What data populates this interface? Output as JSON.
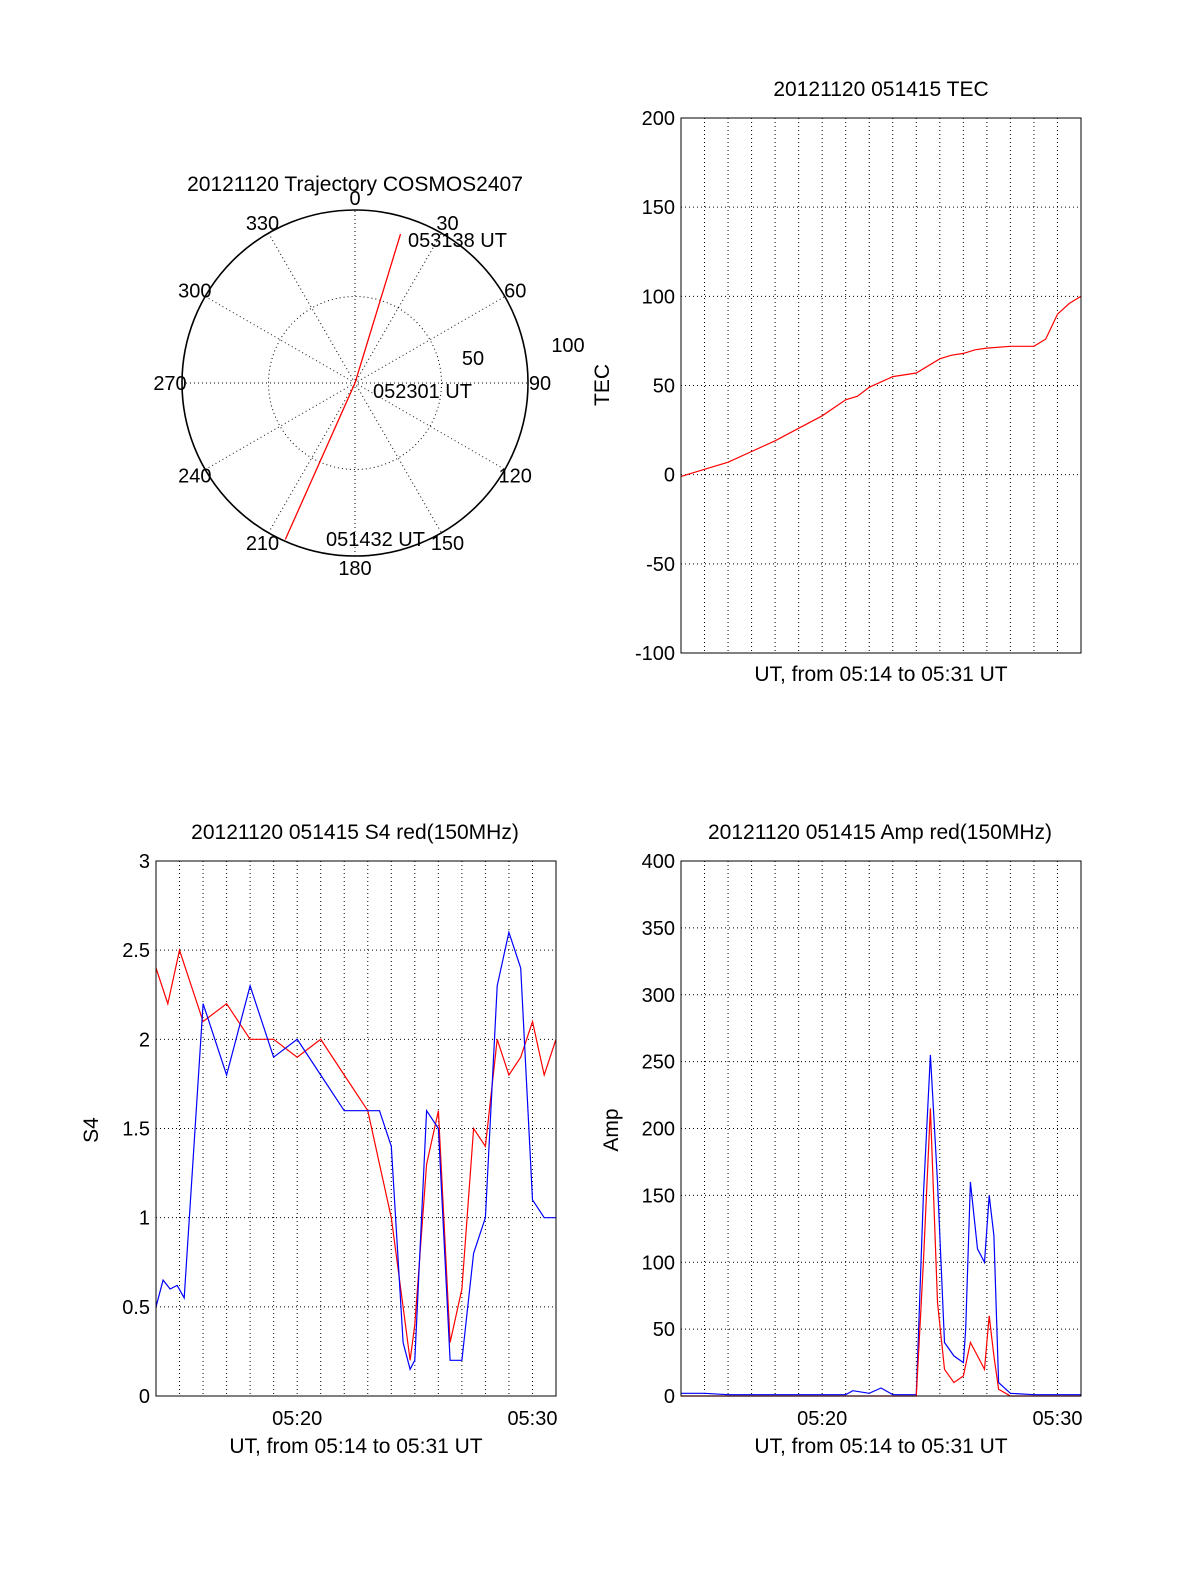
{
  "chart_data": [
    {
      "type": "scatter",
      "title": "20121120 Trajectory COSMOS2407",
      "projection": "polar",
      "azimuth_ticks": [
        "0",
        "30",
        "60",
        "90",
        "120",
        "150",
        "180",
        "210",
        "240",
        "270",
        "300",
        "330"
      ],
      "elevation_ring_labels": [
        "50",
        "100"
      ],
      "rlim": [
        0,
        100
      ],
      "grid": true,
      "color": "#ff0000",
      "series": [
        {
          "points": [
            {
              "az": 204,
              "zenith": 99,
              "label": "051432 UT"
            },
            {
              "az": 35,
              "zenith": 0,
              "label": "052301 UT"
            },
            {
              "az": 17,
              "zenith": 90,
              "label": "053138 UT"
            }
          ]
        }
      ]
    },
    {
      "type": "line",
      "title": "20121120 051415 TEC",
      "xlabel": "UT, from 05:14 to 05:31 UT",
      "ylabel": "TEC",
      "xlim": [
        0,
        17
      ],
      "ylim": [
        -100,
        200
      ],
      "yticks": [
        "200",
        "150",
        "100",
        "50",
        "0",
        "-50",
        "-100"
      ],
      "grid": true,
      "series": [
        {
          "color": "#ff0000",
          "x": [
            0,
            1,
            2,
            3,
            4,
            5,
            6,
            7,
            7.5,
            8,
            9,
            10,
            11,
            11.5,
            12,
            12.5,
            13,
            14,
            15,
            15.5,
            16,
            16.5,
            17
          ],
          "y": [
            -1,
            3,
            7,
            13,
            19,
            26,
            33,
            42,
            44,
            49,
            55,
            57,
            65,
            67,
            68,
            70,
            71,
            72,
            72,
            76,
            90,
            96,
            100
          ]
        }
      ]
    },
    {
      "type": "line",
      "title": "20121120 051415 S4 red(150MHz)",
      "xlabel": "UT, from 05:14 to 05:31 UT",
      "ylabel": "S4",
      "xlim": [
        0,
        17
      ],
      "ylim": [
        0,
        3
      ],
      "yticks": [
        "3",
        "2.5",
        "2",
        "1.5",
        "1",
        "0.5",
        "0"
      ],
      "xticks": [
        {
          "x": 6,
          "label": "05:20"
        },
        {
          "x": 16,
          "label": "05:30"
        }
      ],
      "grid": true,
      "series": [
        {
          "color": "#ff0000",
          "x": [
            0,
            0.5,
            1,
            2,
            3,
            4,
            5,
            6,
            7,
            8,
            9,
            9.5,
            10,
            10.5,
            10.8,
            11,
            11.5,
            12,
            12.5,
            13,
            13.5,
            14,
            14.5,
            15,
            15.5,
            16,
            16.5,
            17
          ],
          "y": [
            2.4,
            2.2,
            2.5,
            2.1,
            2.2,
            2.0,
            2.0,
            1.9,
            2.0,
            1.8,
            1.6,
            1.3,
            1.0,
            0.5,
            0.2,
            0.4,
            1.3,
            1.6,
            0.3,
            0.6,
            1.5,
            1.4,
            2.0,
            1.8,
            1.9,
            2.1,
            1.8,
            2.0
          ]
        },
        {
          "color": "#0000ff",
          "x": [
            0,
            0.3,
            0.6,
            0.9,
            1.2,
            2,
            3,
            4,
            5,
            6,
            7,
            8,
            9,
            9.5,
            10,
            10.5,
            10.8,
            11,
            11.5,
            12,
            12.5,
            13,
            13.5,
            14,
            14.5,
            15,
            15.5,
            16,
            16.5,
            17
          ],
          "y": [
            0.5,
            0.65,
            0.6,
            0.62,
            0.55,
            2.2,
            1.8,
            2.3,
            1.9,
            2.0,
            1.8,
            1.6,
            1.6,
            1.6,
            1.4,
            0.3,
            0.15,
            0.2,
            1.6,
            1.5,
            0.2,
            0.2,
            0.8,
            1.0,
            2.3,
            2.6,
            2.4,
            1.1,
            1.0,
            1.0
          ]
        }
      ]
    },
    {
      "type": "line",
      "title": "20121120 051415 Amp red(150MHz)",
      "xlabel": "UT, from 05:14 to 05:31 UT",
      "ylabel": "Amp",
      "xlim": [
        0,
        17
      ],
      "ylim": [
        0,
        400
      ],
      "yticks": [
        "400",
        "350",
        "300",
        "250",
        "200",
        "150",
        "100",
        "50",
        "0"
      ],
      "xticks": [
        {
          "x": 6,
          "label": "05:20"
        },
        {
          "x": 16,
          "label": "05:30"
        }
      ],
      "grid": true,
      "series": [
        {
          "color": "#0000ff",
          "x": [
            0,
            1,
            2,
            3,
            4,
            5,
            7,
            7.3,
            8,
            8.5,
            9,
            9.5,
            10,
            10.3,
            10.6,
            10.9,
            11.2,
            11.6,
            12,
            12.1,
            12.3,
            12.6,
            12.9,
            13.1,
            13.3,
            13.5,
            14,
            15,
            16,
            17
          ],
          "y": [
            2,
            2,
            1,
            1,
            1,
            1,
            1,
            4,
            2,
            6,
            1,
            1,
            1,
            150,
            255,
            160,
            40,
            30,
            25,
            50,
            160,
            110,
            100,
            150,
            120,
            10,
            2,
            1,
            1,
            1
          ]
        },
        {
          "color": "#ff0000",
          "x": [
            0,
            9,
            10,
            10.3,
            10.6,
            10.9,
            11.2,
            11.6,
            12,
            12.3,
            12.6,
            12.9,
            13.1,
            13.3,
            13.5,
            14,
            17
          ],
          "y": [
            0,
            0,
            0,
            100,
            215,
            70,
            20,
            10,
            15,
            40,
            30,
            20,
            60,
            30,
            5,
            0,
            0
          ]
        }
      ]
    }
  ]
}
